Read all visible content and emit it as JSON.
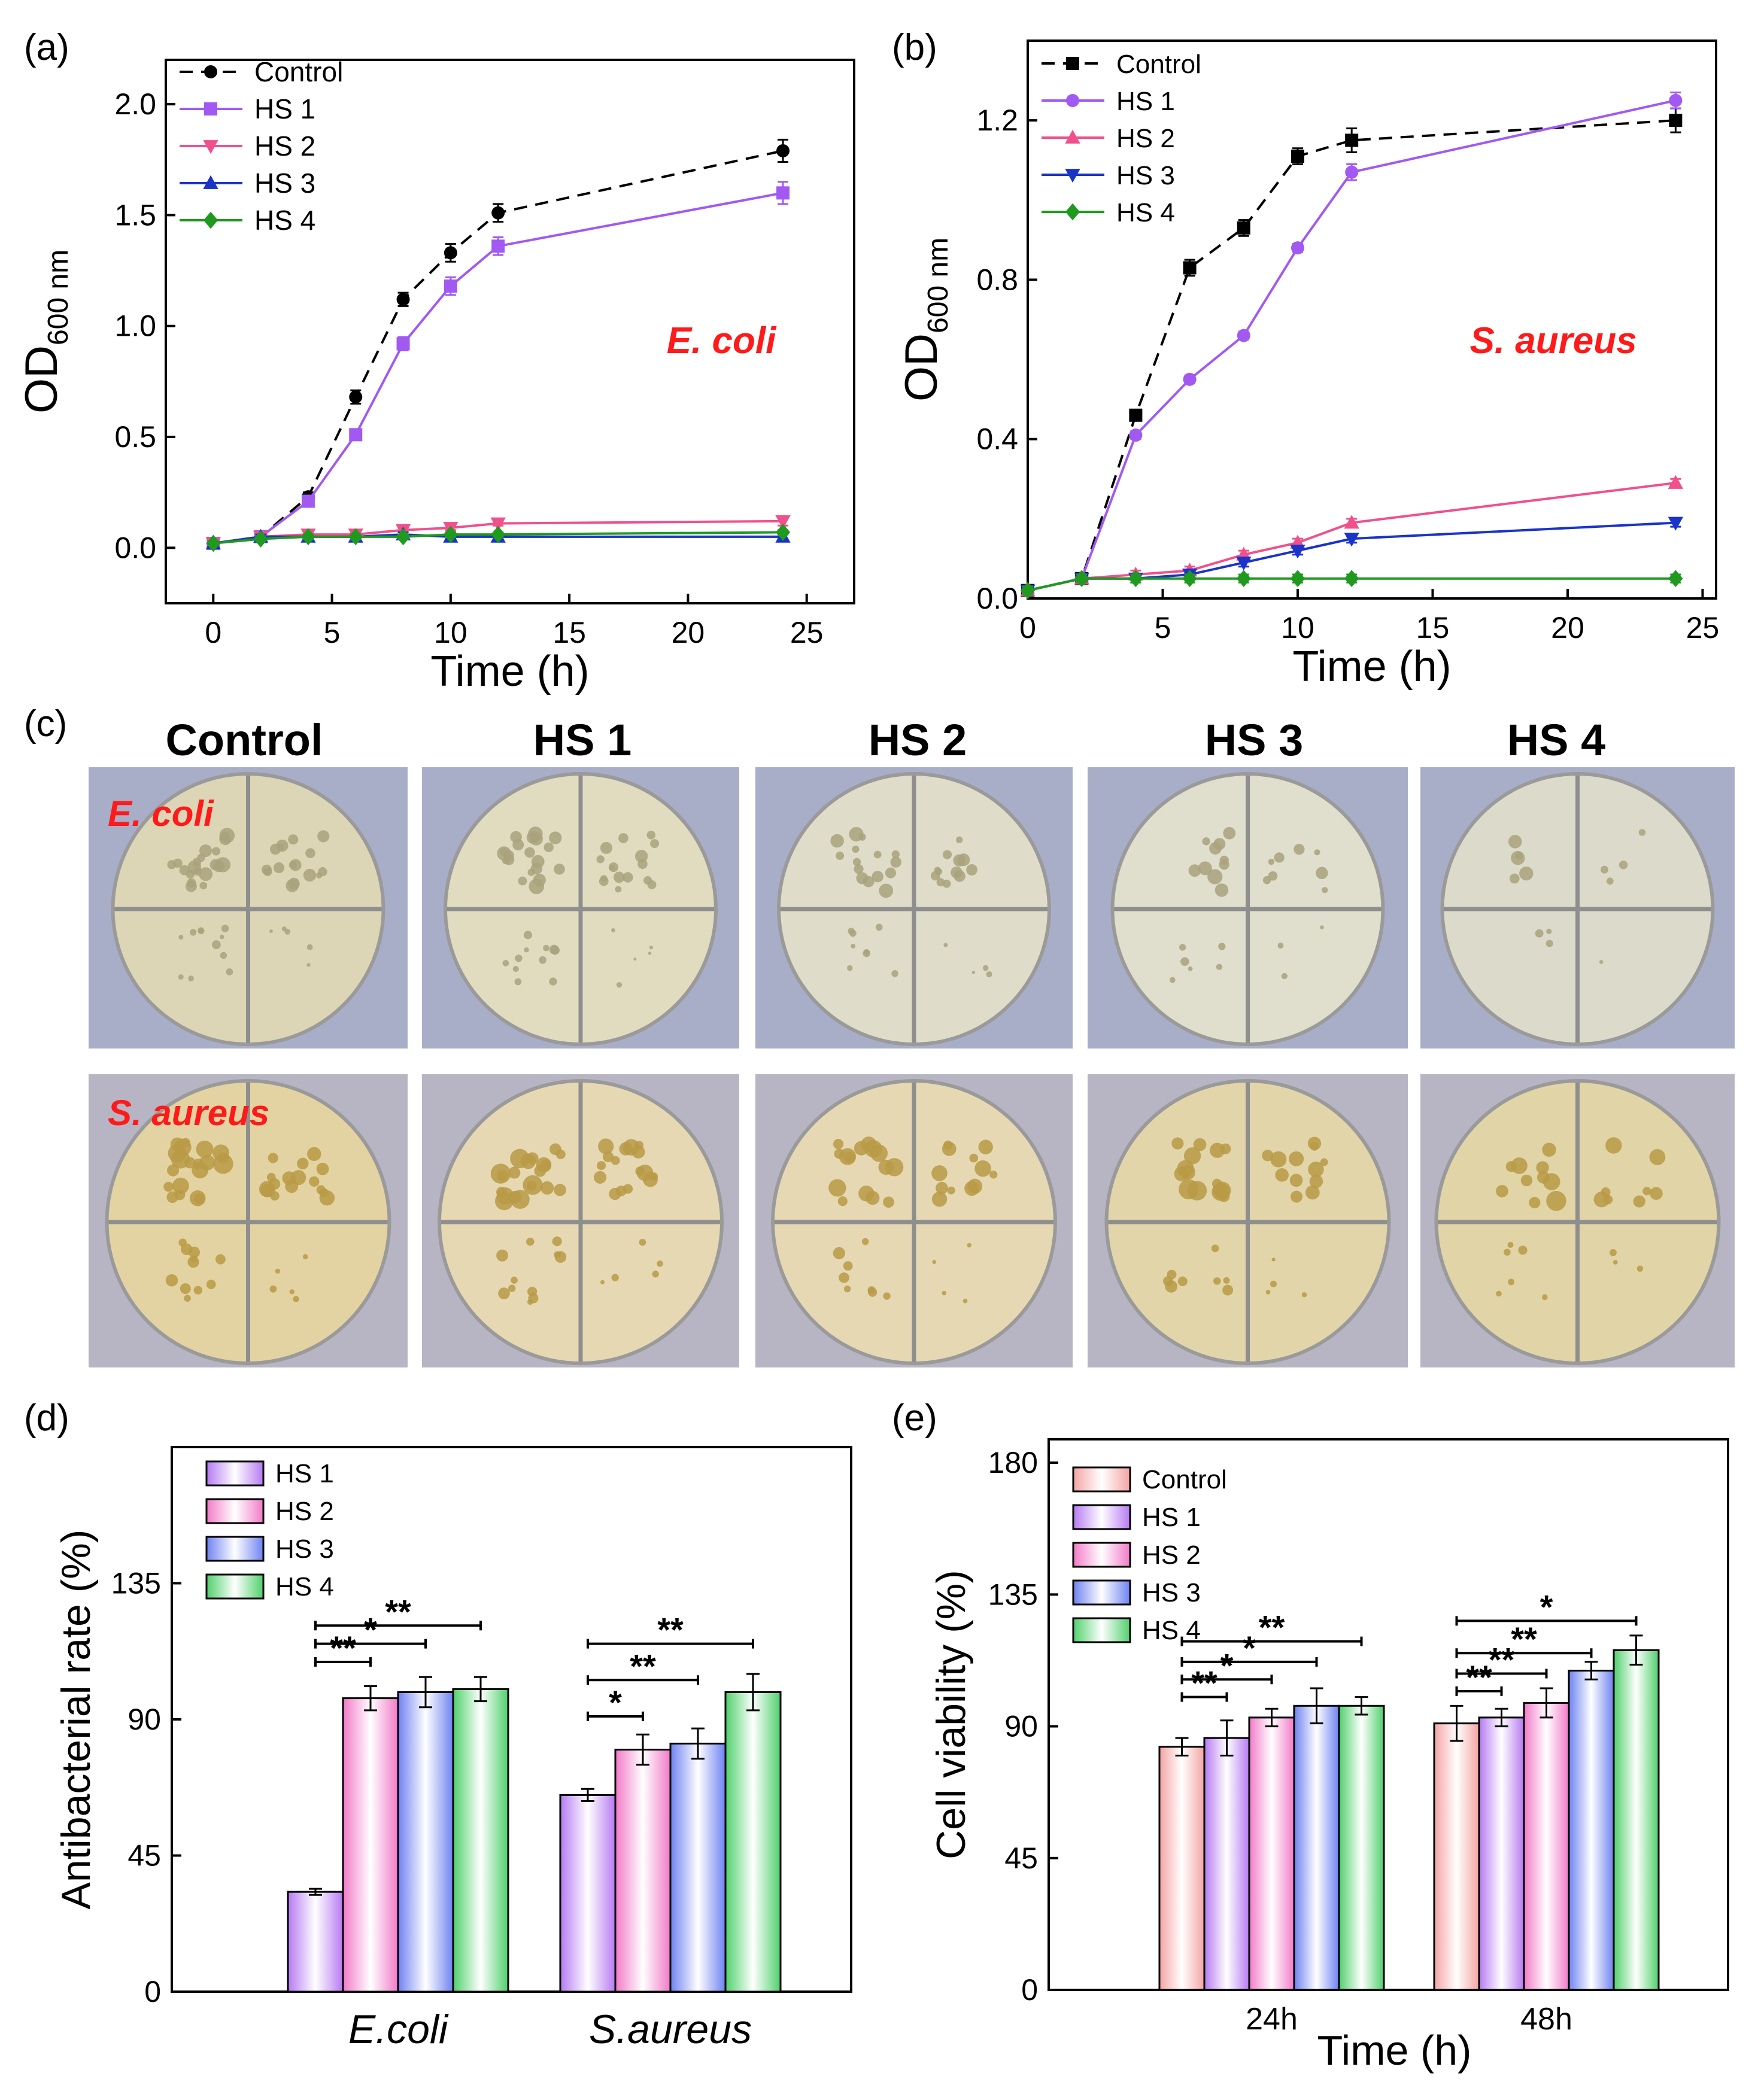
{
  "colors": {
    "control": "#000000",
    "hs1": "#a259f2",
    "hs2": "#f0508c",
    "hs3": "#1a33c8",
    "hs4": "#1f9a1f",
    "label_red": "#ff1a1a",
    "bar_control": "#f5a3a3",
    "bar_hs1": "#b57af2",
    "bar_hs2": "#f27ac8",
    "bar_hs3": "#6e82f2",
    "bar_hs4": "#4fd06a"
  },
  "panel_c": {
    "label": "(c)",
    "columns": [
      "Control",
      "HS 1",
      "HS 2",
      "HS 3",
      "HS 4"
    ],
    "rows": [
      "E. coli",
      "S. aureus"
    ],
    "colony_levels": [
      [
        4,
        4,
        3,
        2,
        1
      ],
      [
        4,
        4,
        3,
        3,
        2
      ]
    ]
  },
  "chart_data": [
    {
      "id": "a",
      "panel_label": "(a)",
      "type": "line",
      "xlabel": "Time (h)",
      "ylabel_main": "OD",
      "ylabel_sub": "600 nm",
      "annotation": "E. coli",
      "xlim": [
        -2,
        27
      ],
      "ylim": [
        -0.25,
        2.2
      ],
      "xticks": [
        0,
        5,
        10,
        15,
        20,
        25
      ],
      "xtick_labels": [
        "0",
        "5",
        "10",
        "15",
        "20",
        "25"
      ],
      "yticks": [
        0.0,
        0.5,
        1.0,
        1.5,
        2.0
      ],
      "ytick_labels": [
        "0.0",
        "0.5",
        "1.0",
        "1.5",
        "2.0"
      ],
      "x": [
        0,
        2,
        4,
        6,
        8,
        10,
        12,
        24
      ],
      "series": [
        {
          "name": "Control",
          "key": "control",
          "marker": "circle",
          "dash": true,
          "values": [
            0.02,
            0.05,
            0.23,
            0.68,
            1.12,
            1.33,
            1.51,
            1.79
          ],
          "errors": [
            0.02,
            0.01,
            0.02,
            0.03,
            0.03,
            0.04,
            0.04,
            0.05
          ]
        },
        {
          "name": "HS 1",
          "key": "hs1",
          "marker": "square",
          "dash": false,
          "values": [
            0.02,
            0.05,
            0.21,
            0.51,
            0.92,
            1.18,
            1.36,
            1.6
          ],
          "errors": [
            0.02,
            0.01,
            0.02,
            0.02,
            0.03,
            0.04,
            0.04,
            0.05
          ]
        },
        {
          "name": "HS 2",
          "key": "hs2",
          "marker": "triangle-down",
          "dash": false,
          "values": [
            0.02,
            0.05,
            0.06,
            0.06,
            0.08,
            0.09,
            0.11,
            0.12
          ],
          "errors": [
            0.01,
            0.01,
            0.01,
            0.01,
            0.01,
            0.01,
            0.01,
            0.02
          ]
        },
        {
          "name": "HS 3",
          "key": "hs3",
          "marker": "triangle-up",
          "dash": false,
          "values": [
            0.02,
            0.05,
            0.05,
            0.05,
            0.06,
            0.05,
            0.05,
            0.05
          ],
          "errors": [
            0.01,
            0.01,
            0.01,
            0.01,
            0.01,
            0.01,
            0.01,
            0.01
          ]
        },
        {
          "name": "HS 4",
          "key": "hs4",
          "marker": "diamond",
          "dash": false,
          "values": [
            0.02,
            0.04,
            0.05,
            0.05,
            0.05,
            0.06,
            0.06,
            0.07
          ],
          "errors": [
            0.01,
            0.01,
            0.01,
            0.01,
            0.01,
            0.01,
            0.01,
            0.01
          ]
        }
      ]
    },
    {
      "id": "b",
      "panel_label": "(b)",
      "type": "line",
      "xlabel": "Time (h)",
      "ylabel_main": "OD",
      "ylabel_sub": "600 nm",
      "annotation": "S. aureus",
      "xlim": [
        0,
        25.5
      ],
      "ylim": [
        0,
        1.4
      ],
      "xticks": [
        0,
        5,
        10,
        15,
        20,
        25
      ],
      "xtick_labels": [
        "0",
        "5",
        "10",
        "15",
        "20",
        "25"
      ],
      "yticks": [
        0.0,
        0.4,
        0.8,
        1.2
      ],
      "ytick_labels": [
        "0.0",
        "0.4",
        "0.8",
        "1.2"
      ],
      "x": [
        0,
        2,
        4,
        6,
        8,
        10,
        12,
        24
      ],
      "series": [
        {
          "name": "Control",
          "key": "control",
          "marker": "square",
          "dash": true,
          "values": [
            0.02,
            0.05,
            0.46,
            0.83,
            0.93,
            1.11,
            1.15,
            1.2
          ],
          "errors": [
            0.01,
            0.01,
            0.01,
            0.02,
            0.02,
            0.02,
            0.03,
            0.03
          ]
        },
        {
          "name": "HS 1",
          "key": "hs1",
          "marker": "circle",
          "dash": false,
          "values": [
            0.02,
            0.05,
            0.41,
            0.55,
            0.66,
            0.88,
            1.07,
            1.25
          ],
          "errors": [
            0.01,
            0.01,
            0.01,
            0.01,
            0.01,
            0.01,
            0.02,
            0.02
          ]
        },
        {
          "name": "HS 2",
          "key": "hs2",
          "marker": "triangle-up",
          "dash": false,
          "values": [
            0.02,
            0.05,
            0.06,
            0.07,
            0.11,
            0.14,
            0.19,
            0.29
          ],
          "errors": [
            0.01,
            0.01,
            0.01,
            0.01,
            0.01,
            0.01,
            0.01,
            0.01
          ]
        },
        {
          "name": "HS 3",
          "key": "hs3",
          "marker": "triangle-down",
          "dash": false,
          "values": [
            0.02,
            0.05,
            0.05,
            0.06,
            0.09,
            0.12,
            0.15,
            0.19
          ],
          "errors": [
            0.01,
            0.01,
            0.01,
            0.01,
            0.01,
            0.01,
            0.01,
            0.01
          ]
        },
        {
          "name": "HS 4",
          "key": "hs4",
          "marker": "diamond",
          "dash": false,
          "values": [
            0.02,
            0.05,
            0.05,
            0.05,
            0.05,
            0.05,
            0.05,
            0.05
          ],
          "errors": [
            0.01,
            0.01,
            0.01,
            0.01,
            0.01,
            0.01,
            0.01,
            0.01
          ]
        }
      ]
    },
    {
      "id": "d",
      "panel_label": "(d)",
      "type": "bar",
      "xlabel": "",
      "ylabel": "Antibacterial rate (%)",
      "ylim": [
        0,
        180
      ],
      "yticks": [
        0,
        45,
        90,
        135
      ],
      "ytick_labels": [
        "0",
        "45",
        "90",
        "135"
      ],
      "categories": [
        "E.coli",
        "S.aureus"
      ],
      "series": [
        {
          "name": "HS 1",
          "key": "bar_hs1",
          "values": [
            33,
            65
          ],
          "errors": [
            1,
            2
          ]
        },
        {
          "name": "HS 2",
          "key": "bar_hs2",
          "values": [
            97,
            80
          ],
          "errors": [
            4,
            5
          ]
        },
        {
          "name": "HS 3",
          "key": "bar_hs3",
          "values": [
            99,
            82
          ],
          "errors": [
            5,
            5
          ]
        },
        {
          "name": "HS 4",
          "key": "bar_hs4",
          "values": [
            100,
            99
          ],
          "errors": [
            4,
            6
          ]
        }
      ],
      "significance": [
        {
          "group": 0,
          "from": 0,
          "to": 1,
          "label": "**",
          "level": 109
        },
        {
          "group": 0,
          "from": 0,
          "to": 2,
          "label": "*",
          "level": 115
        },
        {
          "group": 0,
          "from": 0,
          "to": 3,
          "label": "**",
          "level": 121
        },
        {
          "group": 1,
          "from": 0,
          "to": 1,
          "label": "*",
          "level": 91
        },
        {
          "group": 1,
          "from": 0,
          "to": 2,
          "label": "**",
          "level": 103
        },
        {
          "group": 1,
          "from": 0,
          "to": 3,
          "label": "**",
          "level": 115
        }
      ]
    },
    {
      "id": "e",
      "panel_label": "(e)",
      "type": "bar",
      "xlabel": "Time (h)",
      "ylabel": "Cell viability (%)",
      "ylim": [
        0,
        188
      ],
      "yticks": [
        0,
        45,
        90,
        135,
        180
      ],
      "ytick_labels": [
        "0",
        "45",
        "90",
        "135",
        "180"
      ],
      "categories": [
        "24h",
        "48h"
      ],
      "series": [
        {
          "name": "Control",
          "key": "bar_control",
          "values": [
            83,
            91
          ],
          "errors": [
            3,
            6
          ]
        },
        {
          "name": "HS 1",
          "key": "bar_hs1",
          "values": [
            86,
            93
          ],
          "errors": [
            6,
            3
          ]
        },
        {
          "name": "HS 2",
          "key": "bar_hs2",
          "values": [
            93,
            98
          ],
          "errors": [
            3,
            5
          ]
        },
        {
          "name": "HS 3",
          "key": "bar_hs3",
          "values": [
            97,
            109
          ],
          "errors": [
            6,
            3
          ]
        },
        {
          "name": "HS 4",
          "key": "bar_hs4",
          "values": [
            97,
            116
          ],
          "errors": [
            3,
            5
          ]
        }
      ],
      "significance": [
        {
          "group": 0,
          "from": 0,
          "to": 1,
          "label": "**",
          "level": 100
        },
        {
          "group": 0,
          "from": 0,
          "to": 2,
          "label": "*",
          "level": 106
        },
        {
          "group": 0,
          "from": 0,
          "to": 3,
          "label": "*",
          "level": 112
        },
        {
          "group": 0,
          "from": 0,
          "to": 4,
          "label": "**",
          "level": 119
        },
        {
          "group": 1,
          "from": 0,
          "to": 1,
          "label": "**",
          "level": 102
        },
        {
          "group": 1,
          "from": 0,
          "to": 2,
          "label": "**",
          "level": 108
        },
        {
          "group": 1,
          "from": 0,
          "to": 3,
          "label": "**",
          "level": 115
        },
        {
          "group": 1,
          "from": 0,
          "to": 4,
          "label": "*",
          "level": 126
        }
      ]
    }
  ]
}
